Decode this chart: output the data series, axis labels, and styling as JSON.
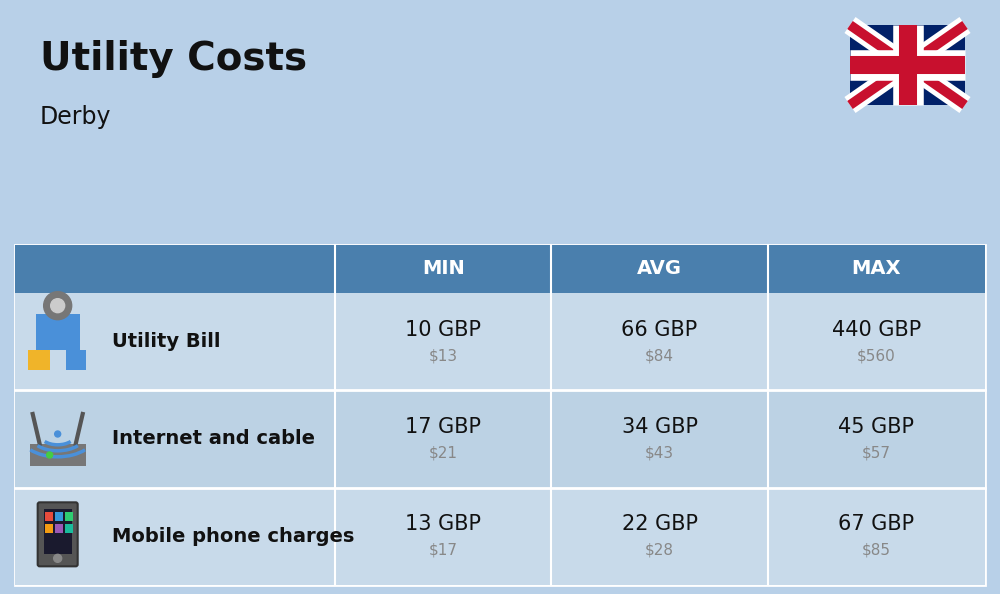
{
  "title": "Utility Costs",
  "subtitle": "Derby",
  "background_color": "#b8d0e8",
  "header_bg_color": "#4a7fad",
  "header_text_color": "#ffffff",
  "row_bg_colors": [
    "#c8daea",
    "#bcd2e4"
  ],
  "text_color_dark": "#111111",
  "text_color_usd": "#888888",
  "columns": [
    "",
    "",
    "MIN",
    "AVG",
    "MAX"
  ],
  "rows": [
    {
      "label": "Utility Bill",
      "min_gbp": "10 GBP",
      "min_usd": "$13",
      "avg_gbp": "66 GBP",
      "avg_usd": "$84",
      "max_gbp": "440 GBP",
      "max_usd": "$560",
      "icon": "utility"
    },
    {
      "label": "Internet and cable",
      "min_gbp": "17 GBP",
      "min_usd": "$21",
      "avg_gbp": "34 GBP",
      "avg_usd": "$43",
      "max_gbp": "45 GBP",
      "max_usd": "$57",
      "icon": "internet"
    },
    {
      "label": "Mobile phone charges",
      "min_gbp": "13 GBP",
      "min_usd": "$17",
      "avg_gbp": "22 GBP",
      "avg_usd": "$28",
      "max_gbp": "67 GBP",
      "max_usd": "$85",
      "icon": "phone"
    }
  ],
  "flag_colors": {
    "blue": "#012169",
    "red": "#C8102E",
    "white": "#FFFFFF"
  }
}
